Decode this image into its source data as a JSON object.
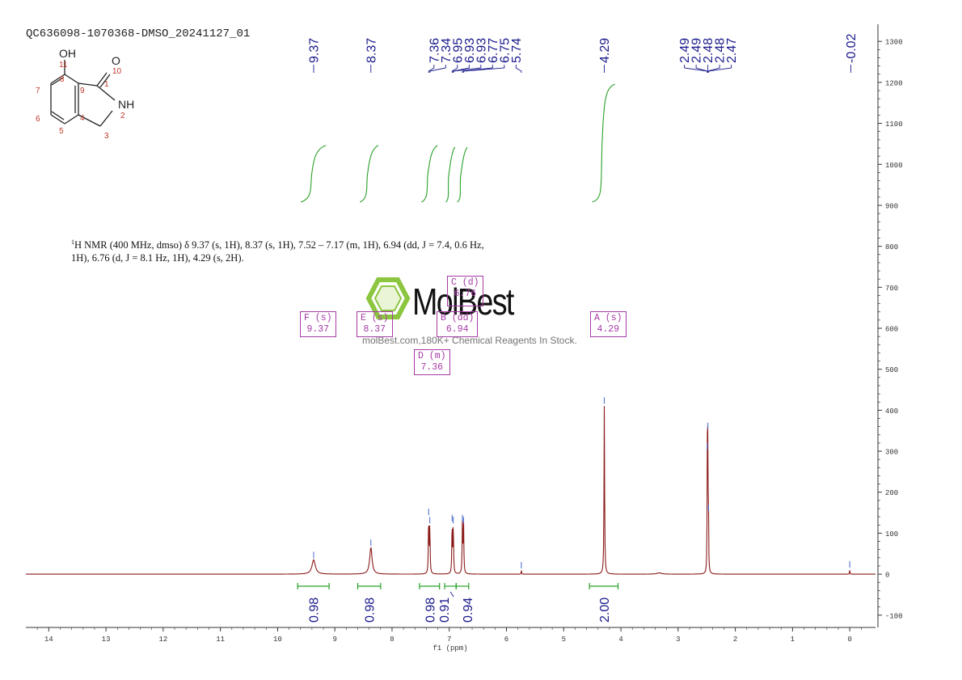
{
  "sample_id": "QC636098-1070368-DMSO_20241127_01",
  "caption": {
    "line1": "H NMR (400 MHz, dmso) δ 9.37 (s, 1H), 8.37 (s, 1H), 7.52 – 7.17 (m, 1H), 6.94 (dd, J = 7.4, 0.6 Hz,",
    "line2": "1H), 6.76 (d, J = 8.1 Hz, 1H), 4.29 (s, 2H).",
    "superscript": "1"
  },
  "watermark": {
    "brand": "MolBest",
    "tagline": "molBest.com,180K+ Chemical Reagents In Stock."
  },
  "structure": {
    "atoms": [
      "OH",
      "O",
      "NH",
      "11",
      "10",
      "8",
      "1",
      "7",
      "9",
      "6",
      "4",
      "2",
      "5",
      "3"
    ]
  },
  "multiplets": [
    {
      "id": "F",
      "type": "s",
      "shift": "9.37"
    },
    {
      "id": "E",
      "type": "s",
      "shift": "8.37"
    },
    {
      "id": "C",
      "type": "d",
      "shift": "6.76"
    },
    {
      "id": "B",
      "type": "dd",
      "shift": "6.94"
    },
    {
      "id": "D",
      "type": "m",
      "shift": "7.36"
    },
    {
      "id": "A",
      "type": "s",
      "shift": "4.29"
    }
  ],
  "chart_data": {
    "type": "line",
    "xlabel": "f1 (ppm)",
    "xlim": [
      14.4,
      -0.45
    ],
    "x_ticks": [
      14,
      13,
      12,
      11,
      10,
      9,
      8,
      7,
      6,
      5,
      4,
      3,
      2,
      1,
      0
    ],
    "ylim": [
      -130,
      1330
    ],
    "y_ticks": [
      -100,
      0,
      100,
      200,
      300,
      400,
      500,
      600,
      700,
      800,
      900,
      1000,
      1100,
      1200,
      1300
    ],
    "peaks": [
      {
        "shift": 9.37,
        "height": 35,
        "width": 0.035
      },
      {
        "shift": 8.37,
        "height": 65,
        "width": 0.025
      },
      {
        "shift": 7.36,
        "height": 140,
        "width": 0.006
      },
      {
        "shift": 7.34,
        "height": 120,
        "width": 0.006
      },
      {
        "shift": 6.95,
        "height": 125,
        "width": 0.006
      },
      {
        "shift": 6.93,
        "height": 120,
        "width": 0.006
      },
      {
        "shift": 6.77,
        "height": 125,
        "width": 0.006
      },
      {
        "shift": 6.75,
        "height": 120,
        "width": 0.006
      },
      {
        "shift": 5.74,
        "height": 10,
        "width": 0.004
      },
      {
        "shift": 4.29,
        "height": 412,
        "width": 0.006
      },
      {
        "shift": 3.33,
        "height": 3,
        "width": 0.05
      },
      {
        "shift": 2.49,
        "height": 300,
        "width": 0.004
      },
      {
        "shift": 2.48,
        "height": 350,
        "width": 0.004
      },
      {
        "shift": 2.47,
        "height": 150,
        "width": 0.004
      },
      {
        "shift": 0.0,
        "height": 12,
        "width": 0.004
      }
    ],
    "peak_labels": [
      "9.37",
      "8.37",
      "7.36",
      "7.34",
      "6.95",
      "6.93",
      "6.93",
      "6.77",
      "6.75",
      "5.74",
      "4.29",
      "2.49",
      "2.49",
      "2.48",
      "2.48",
      "2.47",
      "-0.02"
    ],
    "integrals": [
      {
        "from": 9.65,
        "to": 9.1,
        "value": "0.98"
      },
      {
        "from": 8.6,
        "to": 8.2,
        "value": "0.98"
      },
      {
        "from": 7.52,
        "to": 7.17,
        "value": "0.98"
      },
      {
        "from": 7.08,
        "to": 6.88,
        "value": "0.91"
      },
      {
        "from": 6.88,
        "to": 6.66,
        "value": "0.94"
      },
      {
        "from": 4.55,
        "to": 4.05,
        "value": "2.00"
      }
    ],
    "colors": {
      "spectrum": "#8b1a1a",
      "integral": "#2aa02a",
      "labels": "#1a1a8c",
      "multiplet": "#a63aa6",
      "axis": "#333333"
    }
  }
}
